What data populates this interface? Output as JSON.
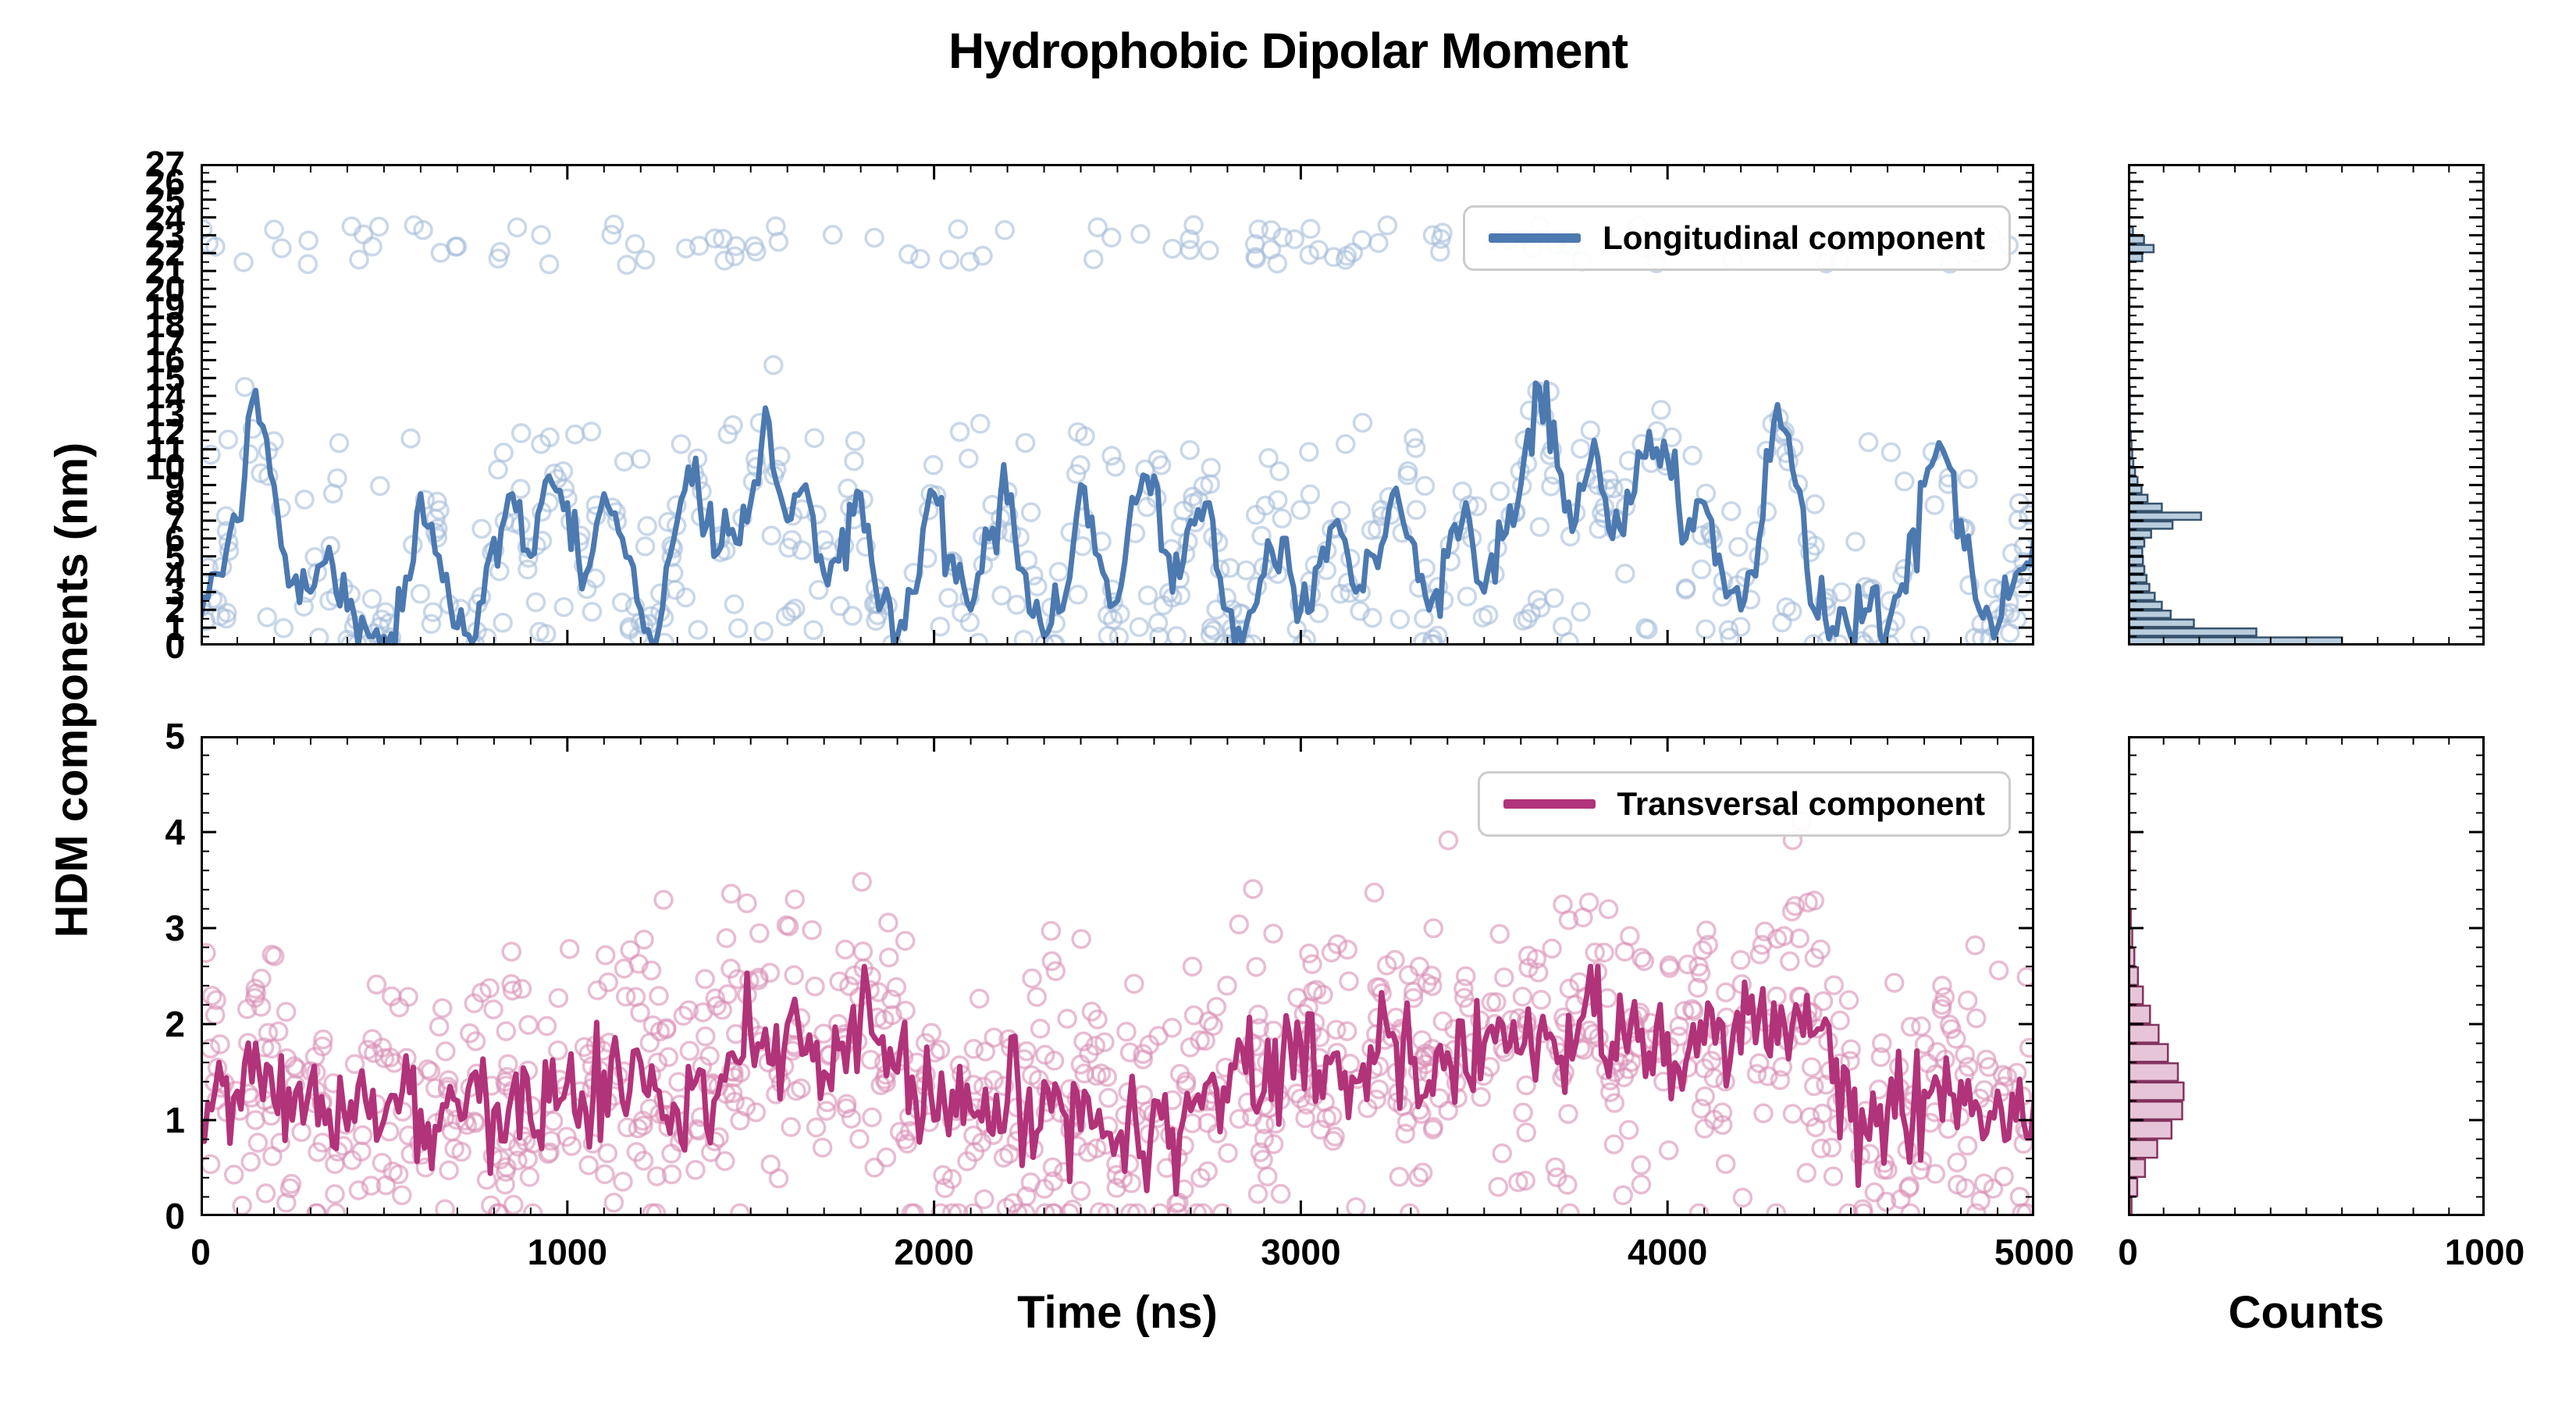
{
  "figure": {
    "title": "Hydrophobic Dipolar Moment",
    "xlabel": "Time (ns)",
    "ylabel": "HDM components (nm)",
    "counts_label": "Counts"
  },
  "colors": {
    "longitudinal_line": "#4c79b0",
    "longitudinal_scatter": "#a5bdd9",
    "longitudinal_hist_fill": "#b6cbdc",
    "longitudinal_hist_edge": "#2f4b66",
    "transversal_line": "#b13379",
    "transversal_scatter": "#d88fb6",
    "transversal_hist_fill": "#e6c2d6",
    "transversal_hist_edge": "#7e2a58",
    "axis": "#000000",
    "legend_border": "#cccccc",
    "background": "#ffffff"
  },
  "chart_data": [
    {
      "id": "longitudinal_timeseries",
      "type": "line+scatter",
      "legend": "Longitudinal component",
      "x_range": [
        0,
        5000
      ],
      "y_range": [
        0,
        27
      ],
      "x_ticks": [
        0,
        1000,
        2000,
        3000,
        4000,
        5000
      ],
      "x_minor_step": 100,
      "y_ticks": [
        0,
        1,
        2,
        3,
        4,
        5,
        6,
        7,
        8,
        9,
        10,
        11,
        12,
        13,
        14,
        15,
        16,
        17,
        18,
        19,
        20,
        21,
        22,
        23,
        24,
        25,
        26,
        27
      ],
      "y_minor_step": 0.5,
      "x_tick_labels": false,
      "y_tick_labels": true,
      "line": {
        "x_start": 0,
        "x_step": 50,
        "subdivisions": 5,
        "seed": 3,
        "noise_sigma": 0.9,
        "y_min": 0.05,
        "y_max": 26.5,
        "y": [
          1.5,
          4.0,
          7.0,
          14.3,
          9.0,
          3.5,
          3.0,
          5.5,
          2.0,
          1.0,
          0.5,
          2.0,
          8.5,
          5.0,
          1.0,
          0.5,
          6.0,
          8.5,
          5.0,
          9.5,
          8.0,
          4.0,
          8.5,
          6.0,
          2.0,
          1.0,
          7.0,
          10.5,
          5.0,
          6.5,
          8.0,
          12.5,
          7.0,
          9.0,
          4.0,
          6.5,
          8.5,
          2.0,
          0.5,
          3.0,
          8.5,
          5.0,
          2.0,
          6.0,
          8.0,
          4.0,
          0.5,
          2.0,
          9.0,
          5.0,
          2.5,
          8.0,
          9.5,
          3.0,
          7.0,
          8.0,
          2.0,
          1.0,
          4.0,
          6.0,
          2.0,
          4.5,
          7.0,
          3.0,
          5.0,
          8.5,
          6.0,
          2.0,
          5.0,
          8.0,
          3.0,
          6.0,
          9.0,
          14.5,
          10.0,
          7.0,
          11.5,
          6.0,
          8.0,
          12.0,
          10.5,
          6.0,
          8.0,
          4.0,
          2.0,
          6.0,
          13.5,
          9.0,
          2.0,
          1.0,
          0.5,
          2.0,
          1.0,
          3.0,
          9.0,
          11.0,
          7.0,
          2.0,
          1.0,
          4.0,
          6.0
        ]
      },
      "scatter": {
        "seed": 7,
        "count": 650,
        "components": [
          {
            "kind": "line_noise",
            "fraction": 0.52,
            "sigma": 1.5,
            "y_min": 0.08,
            "y_max": 26.5
          },
          {
            "kind": "uniform",
            "fraction": 0.18,
            "y_min": 0.12,
            "y_max": 3.0
          },
          {
            "kind": "uniform",
            "fraction": 0.16,
            "y_min": 21.3,
            "y_max": 23.6
          },
          {
            "kind": "uniform",
            "fraction": 0.14,
            "y_min": 5.5,
            "y_max": 12.5
          }
        ]
      }
    },
    {
      "id": "longitudinal_histogram",
      "type": "bar",
      "orientation": "horizontal",
      "x_range": [
        0,
        1000
      ],
      "y_range": [
        0,
        27
      ],
      "x_ticks": [
        0,
        1000
      ],
      "x_minor_step": 100,
      "y_ticks": [
        0,
        1,
        2,
        3,
        4,
        5,
        6,
        7,
        8,
        9,
        10,
        11,
        12,
        13,
        14,
        15,
        16,
        17,
        18,
        19,
        20,
        21,
        22,
        23,
        24,
        25,
        26,
        27
      ],
      "y_minor_step": 0.5,
      "x_tick_labels": false,
      "y_tick_labels": false,
      "bin_width": 0.5,
      "bin_centers": [
        0.25,
        0.75,
        1.25,
        1.75,
        2.25,
        2.75,
        3.25,
        3.75,
        4.25,
        4.75,
        5.25,
        5.75,
        6.25,
        6.75,
        7.25,
        7.75,
        8.25,
        8.75,
        9.25,
        9.75,
        10.25,
        10.75,
        11.25,
        11.75,
        12.25,
        12.75,
        13.25,
        13.75,
        14.25,
        21.75,
        22.25,
        22.75,
        23.25
      ],
      "counts": [
        600,
        360,
        185,
        120,
        95,
        75,
        60,
        52,
        46,
        42,
        40,
        46,
        65,
        125,
        205,
        95,
        55,
        38,
        27,
        20,
        15,
        12,
        10,
        8,
        6,
        5,
        4,
        3,
        2,
        40,
        72,
        45,
        14
      ]
    },
    {
      "id": "transversal_timeseries",
      "type": "line+scatter",
      "legend": "Transversal component",
      "x_range": [
        0,
        5000
      ],
      "y_range": [
        0,
        5
      ],
      "x_ticks": [
        0,
        1000,
        2000,
        3000,
        4000,
        5000
      ],
      "x_minor_step": 100,
      "y_ticks": [
        0,
        1,
        2,
        3,
        4,
        5
      ],
      "y_minor_step": 0.2,
      "x_tick_labels": true,
      "y_tick_labels": true,
      "line": {
        "x_start": 0,
        "x_step": 50,
        "subdivisions": 5,
        "seed": 11,
        "noise_sigma": 0.3,
        "y_min": 0.2,
        "y_max": 2.6,
        "y": [
          1.0,
          1.6,
          1.3,
          1.8,
          1.2,
          1.0,
          1.4,
          1.1,
          0.9,
          1.2,
          1.0,
          1.3,
          1.1,
          0.9,
          1.2,
          1.5,
          1.1,
          1.3,
          1.0,
          1.2,
          1.4,
          1.1,
          1.5,
          1.2,
          1.6,
          1.3,
          1.1,
          1.4,
          1.2,
          1.7,
          1.9,
          1.6,
          2.0,
          1.7,
          1.5,
          1.8,
          2.1,
          1.8,
          1.5,
          1.2,
          1.0,
          1.3,
          1.1,
          0.9,
          1.2,
          1.0,
          1.4,
          1.1,
          0.9,
          1.1,
          0.8,
          1.0,
          1.2,
          0.9,
          1.1,
          1.4,
          1.2,
          1.5,
          1.3,
          1.6,
          1.8,
          1.5,
          1.7,
          1.4,
          1.6,
          1.9,
          1.6,
          1.4,
          1.7,
          1.5,
          1.8,
          2.0,
          1.7,
          1.9,
          1.6,
          1.8,
          2.1,
          1.8,
          2.0,
          1.7,
          1.9,
          1.6,
          1.8,
          2.0,
          1.7,
          2.1,
          1.8,
          2.2,
          1.9,
          1.4,
          1.0,
          0.8,
          1.1,
          0.9,
          1.3,
          1.0,
          1.4,
          1.1,
          1.3,
          1.0,
          1.2
        ]
      },
      "scatter": {
        "seed": 13,
        "count": 950,
        "components": [
          {
            "kind": "line_noise",
            "fraction": 1.0,
            "sigma": 0.75,
            "y_min": 0.03,
            "y_max": 4.15
          }
        ]
      }
    },
    {
      "id": "transversal_histogram",
      "type": "bar",
      "orientation": "horizontal",
      "x_range": [
        0,
        1000
      ],
      "y_range": [
        0,
        5
      ],
      "x_ticks": [
        0,
        1000
      ],
      "x_minor_step": 100,
      "y_ticks": [
        0,
        1,
        2,
        3,
        4,
        5
      ],
      "y_minor_step": 0.2,
      "x_tick_labels": true,
      "y_tick_labels": false,
      "bin_width": 0.2,
      "bin_centers": [
        0.1,
        0.3,
        0.5,
        0.7,
        0.9,
        1.1,
        1.3,
        1.5,
        1.7,
        1.9,
        2.1,
        2.3,
        2.5,
        2.7,
        2.9,
        3.1,
        3.3,
        3.5,
        3.7,
        3.9
      ],
      "counts": [
        10,
        26,
        48,
        82,
        122,
        152,
        156,
        140,
        112,
        86,
        62,
        42,
        28,
        18,
        12,
        8,
        5,
        3,
        2,
        1
      ]
    }
  ]
}
